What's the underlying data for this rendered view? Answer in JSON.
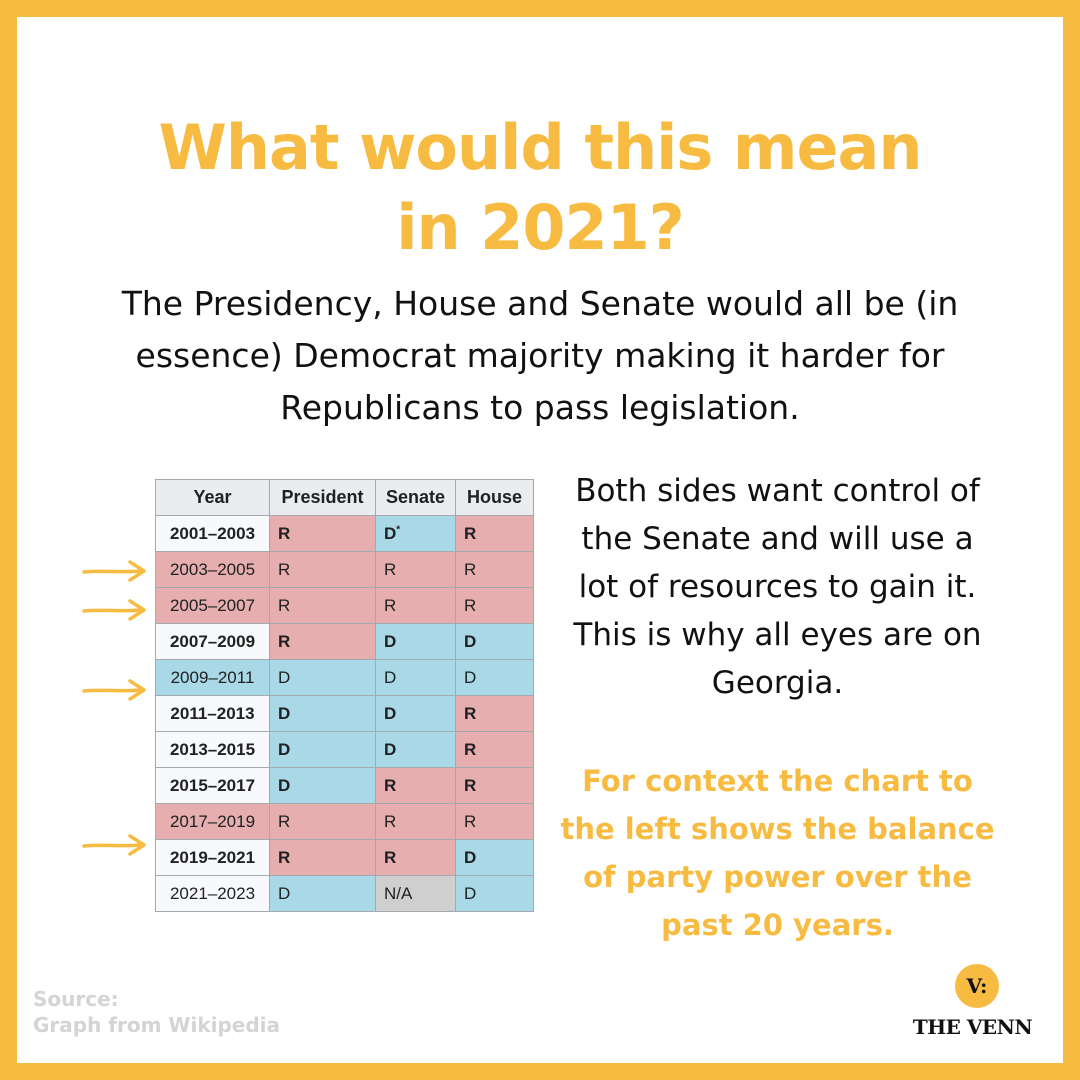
{
  "title": {
    "line1": "What would this mean",
    "line2": "in 2021?"
  },
  "intro": "The Presidency, House and Senate would all be (in essence) Democrat majority making it harder for Republicans to pass legislation.",
  "table": {
    "headers": [
      "Year",
      "President",
      "Senate",
      "House"
    ],
    "rows": [
      {
        "year": "2001–2003",
        "president": "R",
        "senate": "D",
        "senate_note": "*",
        "house": "R"
      },
      {
        "year": "2003–2005",
        "president": "R",
        "senate": "R",
        "house": "R"
      },
      {
        "year": "2005–2007",
        "president": "R",
        "senate": "R",
        "house": "R"
      },
      {
        "year": "2007–2009",
        "president": "R",
        "senate": "D",
        "house": "D"
      },
      {
        "year": "2009–2011",
        "president": "D",
        "senate": "D",
        "house": "D"
      },
      {
        "year": "2011–2013",
        "president": "D",
        "senate": "D",
        "house": "R"
      },
      {
        "year": "2013–2015",
        "president": "D",
        "senate": "D",
        "house": "R"
      },
      {
        "year": "2015–2017",
        "president": "D",
        "senate": "R",
        "house": "R"
      },
      {
        "year": "2017–2019",
        "president": "R",
        "senate": "R",
        "house": "R"
      },
      {
        "year": "2019–2021",
        "president": "R",
        "senate": "R",
        "house": "D"
      },
      {
        "year": "2021–2023",
        "president": "D",
        "senate": "N/A",
        "house": "D"
      }
    ]
  },
  "side_text": "Both sides want control of the Senate and will use a lot of resources to gain it. This is why all eyes are on Georgia.",
  "context_text": "For context the chart to the left shows the balance of party power over the past 20 years.",
  "source": {
    "line1": "Source:",
    "line2": "Graph from Wikipedia"
  },
  "logo": {
    "mark": "V:",
    "name": "THE VENN"
  },
  "colors": {
    "accent": "#f8bb42",
    "republican": "#e6aeae",
    "democrat": "#a9d8e6",
    "not_applicable": "#cfcfcf"
  }
}
